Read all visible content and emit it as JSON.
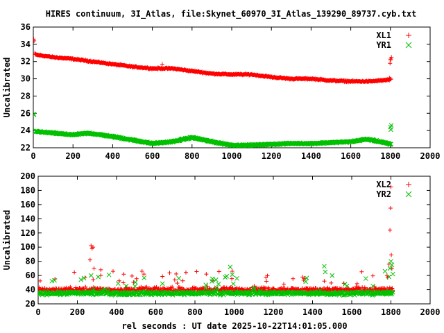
{
  "title": "HIRES continuum, 3I_Atlas, file:Skynet_60970_3I_Atlas_139290_89737.cyb.txt",
  "x_axis_label": "rel seconds : UT date 2025-10-22T14:01:05.000",
  "colors": {
    "series_L": "#ff0000",
    "series_R": "#00c000",
    "axes": "#000000"
  },
  "chart_data": [
    {
      "type": "scatter",
      "panel": "top",
      "title": "HIRES continuum, 3I_Atlas, file:Skynet_60970_3I_Atlas_139290_89737.cyb.txt",
      "xlabel": "",
      "ylabel": "Uncalibrated",
      "xlim": [
        0,
        2000
      ],
      "ylim": [
        22,
        36
      ],
      "xticks": [
        "0",
        "200",
        "400",
        "600",
        "800",
        "1000",
        "1200",
        "1400",
        "1600",
        "1800",
        "2000"
      ],
      "yticks": [
        "22",
        "24",
        "26",
        "28",
        "30",
        "32",
        "34",
        "36"
      ],
      "legend_position": "top-right",
      "series": [
        {
          "name": "XL1",
          "marker": "plus",
          "color": "#ff0000",
          "trend_x": [
            0,
            10,
            100,
            200,
            300,
            400,
            500,
            600,
            700,
            800,
            900,
            1000,
            1100,
            1200,
            1300,
            1400,
            1500,
            1600,
            1700,
            1800
          ],
          "trend_y": [
            33.2,
            32.8,
            32.5,
            32.3,
            32.0,
            31.7,
            31.4,
            31.2,
            31.2,
            30.9,
            30.6,
            30.5,
            30.5,
            30.2,
            30.0,
            30.0,
            29.8,
            29.7,
            29.7,
            29.9
          ],
          "outliers": [
            [
              2,
              34.6
            ],
            [
              4,
              34.4
            ],
            [
              8,
              33.0
            ],
            [
              650,
              31.7
            ],
            [
              1795,
              30.1
            ],
            [
              1798,
              31.8
            ],
            [
              1800,
              32.2
            ],
            [
              1802,
              32.3
            ],
            [
              1805,
              32.5
            ]
          ]
        },
        {
          "name": "YR1",
          "marker": "x",
          "color": "#00c000",
          "trend_x": [
            0,
            10,
            100,
            200,
            280,
            400,
            500,
            600,
            700,
            800,
            900,
            1000,
            1100,
            1200,
            1300,
            1400,
            1500,
            1600,
            1680,
            1750,
            1800
          ],
          "trend_y": [
            24.3,
            23.9,
            23.7,
            23.5,
            23.7,
            23.3,
            22.9,
            22.5,
            22.7,
            23.2,
            22.7,
            22.3,
            22.3,
            22.4,
            22.5,
            22.5,
            22.6,
            22.7,
            23.0,
            22.7,
            22.4
          ],
          "outliers": [
            [
              2,
              25.9
            ],
            [
              4,
              25.8
            ],
            [
              1800,
              24.4
            ],
            [
              1802,
              24.1
            ],
            [
              1804,
              24.6
            ]
          ]
        }
      ]
    },
    {
      "type": "scatter",
      "panel": "bottom",
      "xlabel": "rel seconds : UT date 2025-10-22T14:01:05.000",
      "ylabel": "Uncalibrated",
      "xlim": [
        0,
        2000
      ],
      "ylim": [
        20,
        200
      ],
      "xticks": [
        "0",
        "200",
        "400",
        "600",
        "800",
        "1000",
        "1200",
        "1400",
        "1600",
        "1800",
        "2000"
      ],
      "yticks": [
        "20",
        "40",
        "60",
        "80",
        "100",
        "120",
        "140",
        "160",
        "180",
        "200"
      ],
      "legend_position": "top-right",
      "series": [
        {
          "name": "XL2",
          "marker": "plus",
          "color": "#ff0000",
          "baseline": 40,
          "spread": 8,
          "peaks": [
            [
              270,
              102
            ],
            [
              275,
              98
            ],
            [
              265,
              82
            ],
            [
              280,
              100
            ],
            [
              285,
              70
            ],
            [
              320,
              68
            ],
            [
              530,
              66
            ],
            [
              540,
              62
            ],
            [
              1800,
              185
            ],
            [
              1798,
              155
            ],
            [
              1795,
              124
            ],
            [
              1802,
              89
            ],
            [
              1790,
              76
            ],
            [
              1805,
              70
            ],
            [
              1780,
              60
            ],
            [
              990,
              66
            ],
            [
              1460,
              52
            ]
          ]
        },
        {
          "name": "YR2",
          "marker": "x",
          "color": "#00c000",
          "baseline": 35,
          "spread": 6,
          "peaks": [
            [
              980,
              72
            ],
            [
              1460,
              73
            ],
            [
              1465,
              65
            ],
            [
              1500,
              60
            ],
            [
              1770,
              66
            ],
            [
              1800,
              80
            ],
            [
              1805,
              75
            ],
            [
              1795,
              70
            ],
            [
              1810,
              62
            ],
            [
              270,
              60
            ],
            [
              1790,
              58
            ]
          ]
        }
      ]
    }
  ]
}
